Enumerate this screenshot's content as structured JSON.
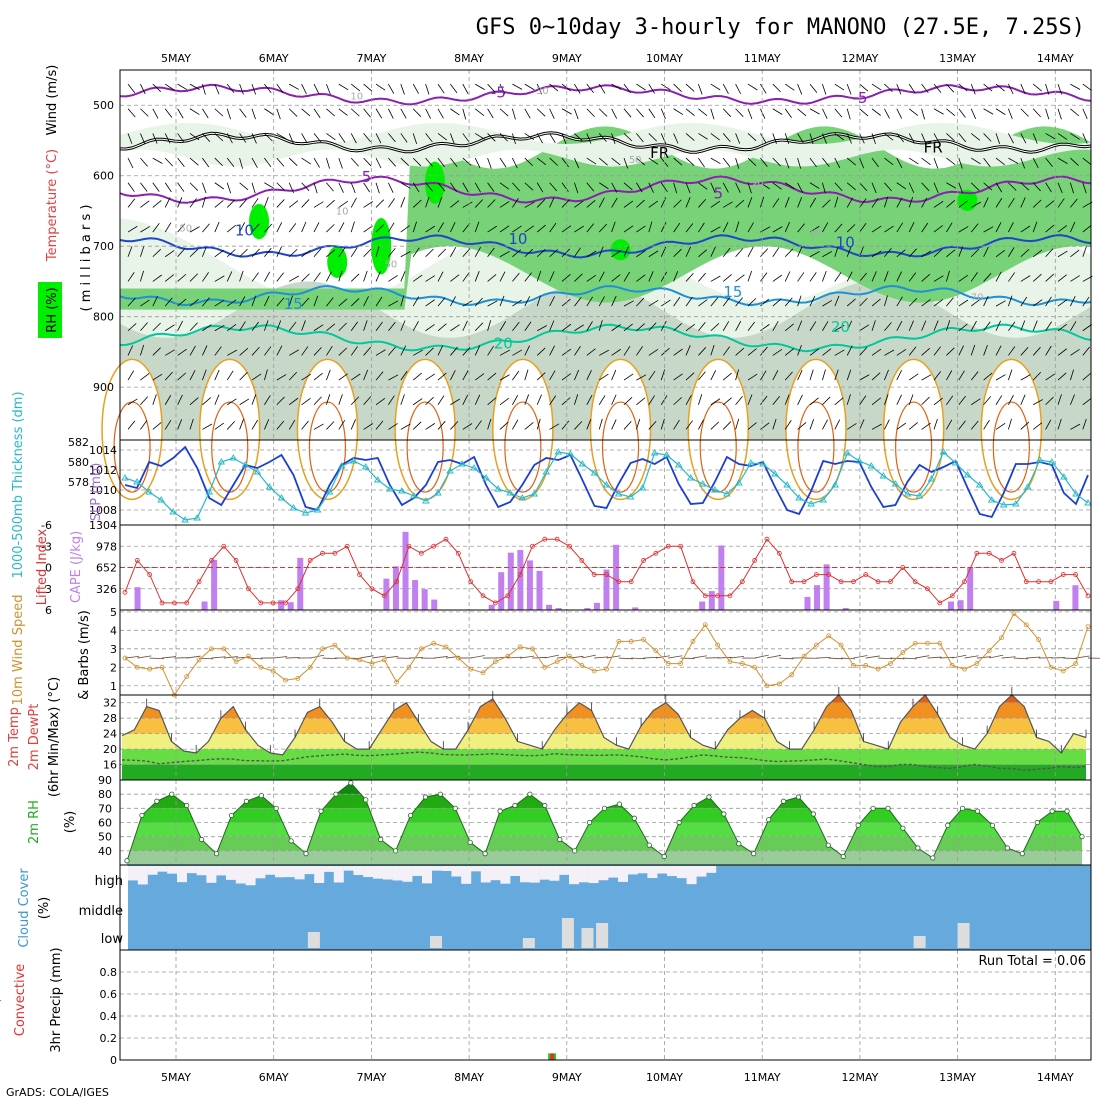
{
  "title": "GFS 0~10day 3-hourly for MANONO (27.5E, 7.25S)",
  "credit": "GrADS: COLA/IGES",
  "days": [
    "5MAY",
    "6MAY",
    "7MAY",
    "8MAY",
    "9MAY",
    "10MAY",
    "11MAY",
    "12MAY",
    "13MAY",
    "14MAY"
  ],
  "colors": {
    "rh_light": "#e8f4e8",
    "rh_mid": "#c8d8c8",
    "rh_green": "#78d278",
    "rh_bright": "#00ee00",
    "temp_purple": "#8a1fb0",
    "temp_blue": "#1f45c8",
    "temp_lightblue": "#1e90d8",
    "temp_teal": "#00c89a",
    "temp_orange": "#e8a020",
    "slp": "#1c3fd0",
    "thickness": "#28b8c8",
    "cape": "#c080f0",
    "li": "#e03030",
    "wind": "#d09030",
    "cloud": "#66aadd",
    "cloud_gap": "#dddddd"
  },
  "labels": {
    "upper_axis": [
      "Wind (m/s)",
      "Temperature (°C)",
      "RH (%)"
    ],
    "upper_unit": "( m i l l i b a r s )",
    "slp_left": "1000-500mb Thickness (dm)",
    "slp_right": "SLP (mb)",
    "cape_left": "Lifted Index",
    "cape_right": "CAPE (J/kg)",
    "wind10": "10m Wind Speed",
    "wind10_b": "& Barbs (m/s)",
    "temp2m": "2m Temp",
    "dew2m": "2m DewPt",
    "temp_note": "(6hr Min/Max) (°C)",
    "rh2m": "2m RH",
    "rh2m_unit": "(%)",
    "cloud": "Cloud Cover",
    "cloud_unit": "(%)",
    "precip_total": "Total / Rain",
    "precip_conv": "Convective",
    "precip_unit": "3hr Precip (mm)",
    "run_total": "Run Total = 0.06"
  },
  "chart_data": [
    {
      "panel": "upper_air",
      "type": "heatmap",
      "ylabel": "millibars",
      "yticks": [
        500,
        600,
        700,
        800,
        900
      ],
      "ylim": [
        450,
        975
      ],
      "contour_labels": [
        {
          "text": "-5",
          "color": "#8a1fb0",
          "x_day": 3.3,
          "y_mb": 482
        },
        {
          "text": "-5",
          "color": "#8a1fb0",
          "x_day": 7.0,
          "y_mb": 490
        },
        {
          "text": "FR",
          "color": "#000000",
          "x_day": 4.95,
          "y_mb": 568
        },
        {
          "text": "FR",
          "color": "#000000",
          "x_day": 7.75,
          "y_mb": 560
        },
        {
          "text": "5",
          "color": "#8a1fb0",
          "x_day": 1.95,
          "y_mb": 602
        },
        {
          "text": "5",
          "color": "#8a1fb0",
          "x_day": 5.55,
          "y_mb": 625
        },
        {
          "text": "10",
          "color": "#1f45c8",
          "x_day": 0.7,
          "y_mb": 678
        },
        {
          "text": "10",
          "color": "#1f45c8",
          "x_day": 3.5,
          "y_mb": 690
        },
        {
          "text": "10",
          "color": "#1f45c8",
          "x_day": 6.85,
          "y_mb": 695
        },
        {
          "text": "15",
          "color": "#1e90d8",
          "x_day": 1.2,
          "y_mb": 782
        },
        {
          "text": "15",
          "color": "#1e90d8",
          "x_day": 5.7,
          "y_mb": 765
        },
        {
          "text": "20",
          "color": "#00c89a",
          "x_day": 3.35,
          "y_mb": 838
        },
        {
          "text": "20",
          "color": "#00c89a",
          "x_day": 6.8,
          "y_mb": 815
        },
        {
          "text": "10",
          "color": "#aaaaaa",
          "x_day": 1.85,
          "y_mb": 485
        },
        {
          "text": "30",
          "color": "#aaaaaa",
          "x_day": 3.75,
          "y_mb": 477
        },
        {
          "text": "50",
          "color": "#aaaaaa",
          "x_day": 4.7,
          "y_mb": 575
        },
        {
          "text": "10",
          "color": "#aaaaaa",
          "x_day": 1.7,
          "y_mb": 648
        },
        {
          "text": "50",
          "color": "#aaaaaa",
          "x_day": 0.1,
          "y_mb": 672
        },
        {
          "text": "50",
          "color": "#aaaaaa",
          "x_day": 2.2,
          "y_mb": 723
        },
        {
          "text": "30",
          "color": "#aaaaaa",
          "x_day": 5.95,
          "y_mb": 610
        },
        {
          "text": "50",
          "color": "#aaaaaa",
          "x_day": 6.55,
          "y_mb": 678
        },
        {
          "text": "70",
          "color": "#aaaaaa",
          "x_day": 8.2,
          "y_mb": 770
        }
      ]
    },
    {
      "panel": "slp_thickness",
      "type": "line",
      "thickness_ticks": [
        578,
        580,
        582
      ],
      "slp_ticks": [
        1008,
        1010,
        1012,
        1014
      ],
      "slp_ylim": [
        1006.5,
        1015
      ],
      "series": [
        {
          "name": "SLP (mb)",
          "values": [
            1010.5,
            1010.2,
            1012.8,
            1012.4,
            1013.2,
            1014.3,
            1012.2,
            1009.2,
            1008.5,
            1010.5,
            1012.5,
            1012.2,
            1012.8,
            1013.5,
            1011.5,
            1008.3,
            1008.0,
            1010.5,
            1012.5,
            1013.2,
            1013.0,
            1013.2,
            1010.5,
            1008.5,
            1009.2,
            1010.5,
            1012.8,
            1013.0,
            1012.6,
            1013.3,
            1010.5,
            1008.3,
            1008.8,
            1010.5,
            1012.5,
            1013.2,
            1013.0,
            1013.5,
            1011.0,
            1008.4,
            1008.2,
            1010.6,
            1012.7,
            1013.1,
            1012.6,
            1013.3,
            1010.6,
            1008.6,
            1008.7,
            1010.8,
            1013.3,
            1012.6,
            1012.4,
            1012.8,
            1010.3,
            1008.0,
            1007.6,
            1009.9,
            1012.9,
            1012.6,
            1012.9,
            1012.8,
            1010.3,
            1008.3,
            1008.5,
            1010.8,
            1012.5,
            1011.8,
            1012.3,
            1012.9,
            1010.2,
            1007.6,
            1007.3,
            1009.7,
            1012.6,
            1012.6,
            1012.8,
            1012.5,
            1009.7,
            1008.6,
            1011.5
          ]
        },
        {
          "name": "1000-500mb Thickness (dm)",
          "values": [
            1011.2,
            1010.8,
            1009.8,
            1009.0,
            1007.8,
            1007.0,
            1007.2,
            1009.8,
            1012.8,
            1013.2,
            1012.5,
            1011.8,
            1010.3,
            1009.2,
            1008.2,
            1007.7,
            1008.0,
            1009.8,
            1012.4,
            1012.9,
            1012.3,
            1011.0,
            1010.1,
            1009.9,
            1009.4,
            1008.9,
            1009.7,
            1011.9,
            1012.6,
            1012.2,
            1011.2,
            1010.1,
            1009.7,
            1009.2,
            1009.6,
            1011.8,
            1013.8,
            1013.6,
            1012.6,
            1011.7,
            1010.5,
            1009.6,
            1009.3,
            1010.2,
            1013.7,
            1013.5,
            1012.5,
            1011.2,
            1010.6,
            1010.0,
            1009.6,
            1010.7,
            1012.7,
            1012.6,
            1011.6,
            1010.5,
            1009.2,
            1008.6,
            1009.0,
            1010.5,
            1013.7,
            1012.9,
            1012.4,
            1011.4,
            1010.6,
            1009.6,
            1009.4,
            1011.1,
            1013.8,
            1012.7,
            1011.5,
            1010.5,
            1009.0,
            1008.5,
            1008.6,
            1010.3,
            1013.0,
            1012.8,
            1011.3,
            1009.6,
            1008.7
          ]
        }
      ]
    },
    {
      "panel": "cape_li",
      "type": "bar",
      "cape_ticks": [
        326,
        652,
        978,
        1304
      ],
      "li_ticks": [
        -6,
        -3,
        0,
        3,
        6
      ],
      "cape_ylim": [
        0,
        1304
      ],
      "li_ylim": [
        -6,
        6
      ],
      "series": [
        {
          "name": "CAPE (J/kg)",
          "values": [
            0,
            350,
            0,
            0,
            0,
            0,
            0,
            0,
            130,
            770,
            0,
            0,
            0,
            0,
            0,
            0,
            150,
            120,
            800,
            0,
            0,
            0,
            0,
            0,
            0,
            0,
            0,
            480,
            670,
            1200,
            460,
            320,
            160,
            0,
            0,
            0,
            0,
            0,
            80,
            580,
            880,
            920,
            760,
            600,
            80,
            30,
            0,
            0,
            30,
            110,
            620,
            1000,
            0,
            40,
            0,
            0,
            0,
            0,
            0,
            0,
            130,
            290,
            990,
            0,
            0,
            0,
            0,
            0,
            0,
            0,
            0,
            200,
            380,
            700,
            0,
            30,
            0,
            0,
            0,
            0,
            0,
            0,
            0,
            0,
            0,
            0,
            130,
            150,
            650,
            0,
            0,
            0,
            0,
            0,
            0,
            0,
            0,
            140,
            0,
            380,
            0
          ]
        },
        {
          "name": "Lifted Index",
          "values": [
            3.5,
            -1,
            1,
            5,
            5,
            5,
            2,
            -1,
            -3,
            -1,
            3,
            5,
            5,
            5,
            3,
            -1,
            -2,
            -2,
            -3,
            1,
            3,
            4,
            2,
            -3,
            -2,
            -3,
            -4,
            -2,
            2,
            4,
            5,
            4,
            1,
            -3,
            -4,
            -4,
            -3,
            -1,
            1,
            1,
            2,
            2,
            -1,
            -2,
            -3,
            -3,
            2,
            4,
            4,
            4,
            2,
            -1,
            -4,
            -2,
            2,
            2,
            1,
            1,
            2,
            2,
            1,
            2,
            2,
            0,
            2,
            3,
            5,
            4,
            2,
            -2,
            -2,
            -1,
            -2,
            2,
            2,
            2,
            1,
            1,
            4
          ]
        }
      ]
    },
    {
      "panel": "wind10m",
      "type": "line",
      "yticks": [
        1,
        2,
        3,
        4,
        5
      ],
      "ylim": [
        0.5,
        5.1
      ],
      "series": [
        {
          "name": "10m Wind Speed (m/s)",
          "values": [
            2.5,
            2.0,
            1.9,
            2.0,
            0.5,
            1.5,
            2.4,
            3.0,
            3.0,
            2.3,
            2.6,
            2.0,
            1.8,
            1.3,
            1.4,
            2.0,
            3.0,
            3.2,
            2.5,
            2.4,
            2.2,
            2.4,
            1.2,
            2.0,
            3.0,
            3.3,
            3.1,
            2.5,
            1.9,
            1.7,
            2.3,
            2.6,
            3.1,
            3.0,
            2.0,
            2.3,
            2.6,
            2.1,
            1.8,
            1.9,
            3.4,
            3.4,
            3.5,
            2.9,
            2.2,
            2.2,
            3.4,
            4.3,
            3.2,
            2.3,
            2.2,
            2.0,
            1.0,
            1.1,
            1.6,
            2.6,
            3.2,
            3.7,
            3.2,
            2.1,
            2.1,
            1.9,
            2.2,
            2.8,
            3.3,
            3.3,
            3.3,
            2.1,
            1.9,
            2.2,
            2.9,
            3.6,
            4.9,
            4.3,
            3.5,
            2.0,
            1.8,
            2.2,
            4.2
          ]
        }
      ]
    },
    {
      "panel": "temp2m",
      "type": "area",
      "yticks": [
        16,
        20,
        24,
        28,
        32
      ],
      "ylim": [
        12,
        34
      ],
      "series": [
        {
          "name": "2m Temp (°C)",
          "values": [
            23.5,
            25,
            31,
            30,
            22,
            19.5,
            19,
            22,
            28,
            31,
            25,
            21,
            19,
            18.5,
            23,
            29.5,
            31,
            27,
            22,
            20,
            20,
            25,
            30,
            32,
            27,
            22,
            20,
            20,
            25,
            31,
            33,
            28,
            22,
            21,
            20,
            25,
            29,
            32,
            30,
            23,
            21,
            20,
            26,
            30,
            32,
            29,
            23,
            21,
            20,
            25,
            28,
            30,
            28,
            22,
            20,
            20,
            25,
            31,
            34,
            30,
            22,
            21,
            20,
            27,
            31,
            34,
            29,
            23,
            21,
            20,
            24,
            31,
            34,
            31,
            23,
            22,
            19,
            24,
            23
          ]
        },
        {
          "name": "2m DewPt (°C)",
          "values": [
            17.2,
            17.1,
            16.9,
            16.2,
            16.5,
            16.8,
            17.0,
            17.3,
            17.5,
            17.4,
            17.0,
            17.0,
            16.9,
            17.0,
            17.5,
            18.0,
            18.3,
            18.5,
            18.7,
            18.4,
            18.3,
            18.5,
            18.7,
            19.0,
            19.2,
            19.0,
            18.6,
            18.5,
            18.5,
            18.6,
            18.8,
            18.6,
            18.4,
            18.3,
            18.4,
            18.8,
            18.6,
            18.5,
            18.4,
            18.4,
            18.5,
            18.3,
            18.0,
            17.5,
            17.2,
            17.5,
            18.0,
            18.5,
            18.2,
            17.9,
            17.8,
            17.5,
            17.0,
            16.8,
            16.9,
            17.0,
            17.2,
            17.4,
            17.0,
            16.5,
            16.0,
            15.5,
            15.5,
            16.0,
            16.0,
            15.5,
            15.2,
            15.0,
            15.5,
            16.0,
            15.6,
            15.0,
            15.0,
            14.5,
            14.8,
            15.0,
            15.5,
            15.2,
            15.5
          ]
        }
      ]
    },
    {
      "panel": "rh2m",
      "type": "area",
      "yticks": [
        40,
        50,
        60,
        70,
        80,
        90
      ],
      "ylim": [
        30,
        90
      ],
      "series": [
        {
          "name": "2m RH (%)",
          "values": [
            33,
            65,
            75,
            80,
            72,
            48,
            38,
            65,
            75,
            79,
            70,
            47,
            38,
            68,
            80,
            88,
            76,
            48,
            40,
            65,
            78,
            80,
            70,
            46,
            38,
            68,
            72,
            80,
            72,
            48,
            40,
            60,
            70,
            73,
            63,
            44,
            36,
            60,
            72,
            78,
            66,
            45,
            38,
            62,
            75,
            78,
            66,
            44,
            36,
            58,
            70,
            70,
            56,
            42,
            35,
            58,
            70,
            68,
            58,
            42,
            38,
            60,
            68,
            68,
            50
          ]
        }
      ]
    },
    {
      "panel": "cloud",
      "type": "heatmap",
      "levels": [
        "high",
        "middle",
        "low"
      ]
    },
    {
      "panel": "precip",
      "type": "bar",
      "yticks": [
        0,
        0.2,
        0.4,
        0.6,
        0.8
      ],
      "ylim": [
        0,
        1.0
      ],
      "series": [
        {
          "name": "Total / Rain (mm)",
          "values": [
            {
              "x_day": 3.85,
              "value": 0.06
            }
          ]
        },
        {
          "name": "Convective (mm)",
          "values": [
            {
              "x_day": 3.85,
              "value": 0.06
            }
          ]
        }
      ]
    }
  ]
}
